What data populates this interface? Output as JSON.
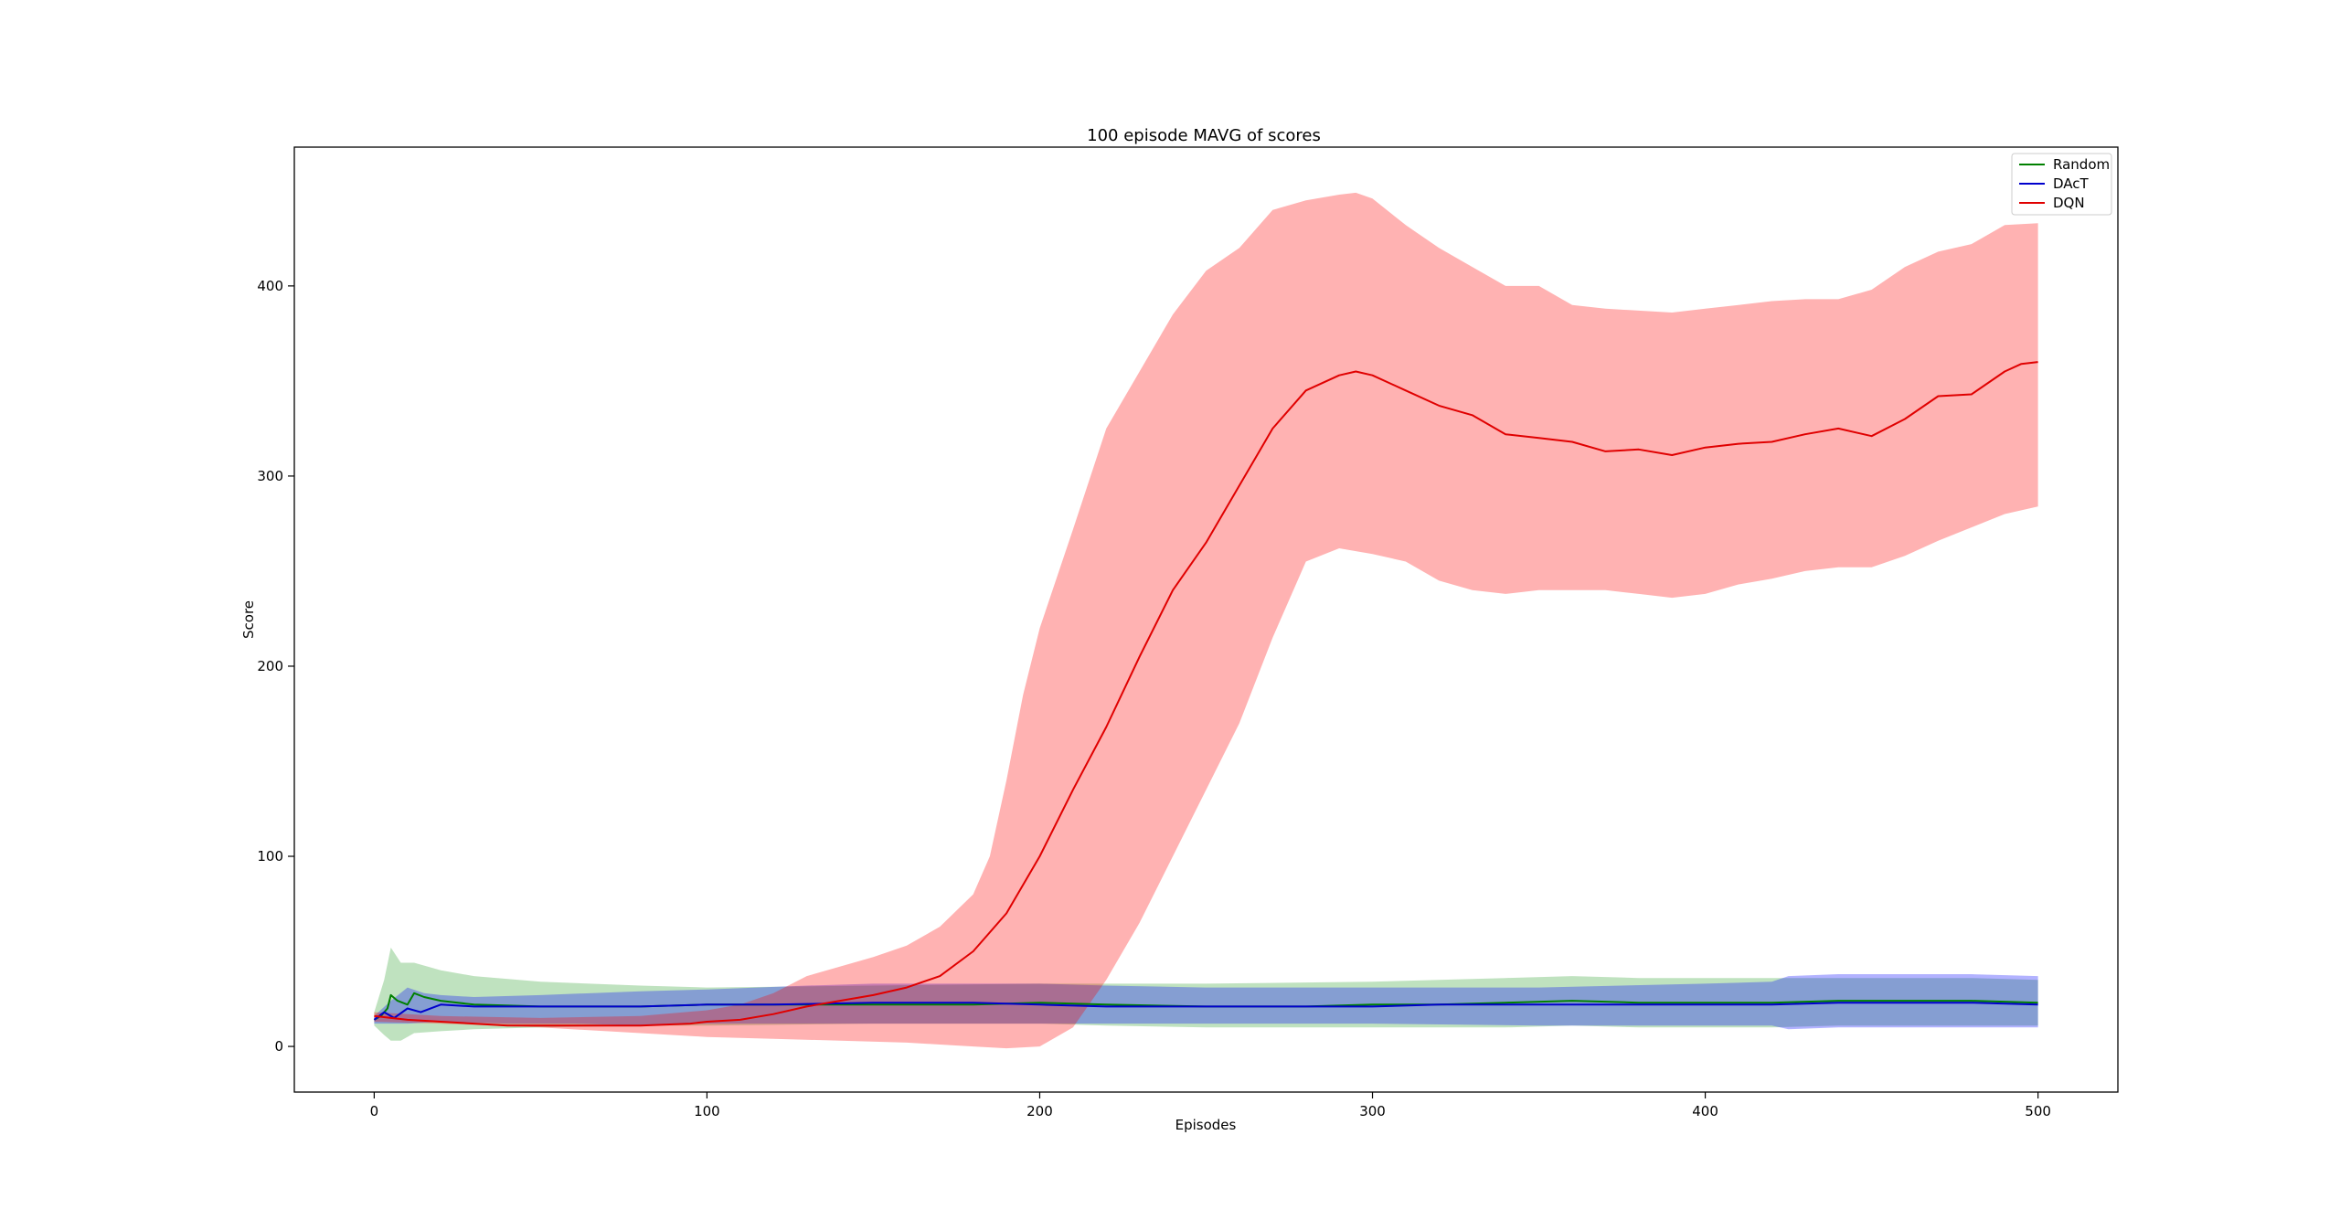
{
  "chart_data": {
    "type": "line",
    "title": "100 episode MAVG of scores",
    "xlabel": "Episodes",
    "ylabel": "Score",
    "xlim": [
      -24,
      524
    ],
    "ylim": [
      -24,
      473
    ],
    "xticks": [
      0,
      100,
      200,
      300,
      400,
      500
    ],
    "yticks": [
      0,
      100,
      200,
      300,
      400
    ],
    "legend_position": "top-right",
    "grid": false,
    "series": [
      {
        "name": "Random",
        "color": "#008000",
        "band_color": "#2ca02c",
        "mean": [
          [
            0,
            14
          ],
          [
            2,
            16
          ],
          [
            4,
            20
          ],
          [
            5,
            27
          ],
          [
            7,
            24
          ],
          [
            10,
            22
          ],
          [
            12,
            28
          ],
          [
            15,
            26
          ],
          [
            20,
            24
          ],
          [
            30,
            22
          ],
          [
            50,
            21
          ],
          [
            80,
            21
          ],
          [
            100,
            22
          ],
          [
            130,
            22
          ],
          [
            150,
            22
          ],
          [
            180,
            22
          ],
          [
            200,
            23
          ],
          [
            220,
            22
          ],
          [
            250,
            21
          ],
          [
            280,
            21
          ],
          [
            300,
            22
          ],
          [
            320,
            22
          ],
          [
            340,
            23
          ],
          [
            360,
            24
          ],
          [
            380,
            23
          ],
          [
            400,
            23
          ],
          [
            420,
            23
          ],
          [
            440,
            24
          ],
          [
            460,
            24
          ],
          [
            480,
            24
          ],
          [
            500,
            23
          ]
        ],
        "upper": [
          [
            0,
            18
          ],
          [
            3,
            35
          ],
          [
            5,
            52
          ],
          [
            8,
            44
          ],
          [
            12,
            44
          ],
          [
            20,
            40
          ],
          [
            30,
            37
          ],
          [
            50,
            34
          ],
          [
            80,
            32
          ],
          [
            100,
            31
          ],
          [
            150,
            32
          ],
          [
            200,
            33
          ],
          [
            220,
            33
          ],
          [
            250,
            33
          ],
          [
            300,
            34
          ],
          [
            320,
            35
          ],
          [
            340,
            36
          ],
          [
            360,
            37
          ],
          [
            380,
            36
          ],
          [
            400,
            36
          ],
          [
            420,
            36
          ],
          [
            440,
            36
          ],
          [
            460,
            36
          ],
          [
            480,
            36
          ],
          [
            500,
            35
          ]
        ],
        "lower": [
          [
            0,
            11
          ],
          [
            3,
            6
          ],
          [
            5,
            3
          ],
          [
            8,
            3
          ],
          [
            12,
            7
          ],
          [
            20,
            8
          ],
          [
            30,
            9
          ],
          [
            50,
            10
          ],
          [
            80,
            11
          ],
          [
            100,
            11
          ],
          [
            150,
            12
          ],
          [
            200,
            12
          ],
          [
            220,
            11
          ],
          [
            250,
            10
          ],
          [
            300,
            10
          ],
          [
            320,
            10
          ],
          [
            340,
            10
          ],
          [
            360,
            11
          ],
          [
            380,
            10
          ],
          [
            400,
            10
          ],
          [
            420,
            10
          ],
          [
            440,
            11
          ],
          [
            460,
            11
          ],
          [
            480,
            11
          ],
          [
            500,
            11
          ]
        ]
      },
      {
        "name": "DAcT",
        "color": "#0000cd",
        "band_color": "#0000ff",
        "mean": [
          [
            0,
            14
          ],
          [
            3,
            18
          ],
          [
            6,
            15
          ],
          [
            10,
            20
          ],
          [
            14,
            18
          ],
          [
            20,
            22
          ],
          [
            30,
            21
          ],
          [
            50,
            21
          ],
          [
            80,
            21
          ],
          [
            100,
            22
          ],
          [
            120,
            22
          ],
          [
            150,
            23
          ],
          [
            180,
            23
          ],
          [
            200,
            22
          ],
          [
            220,
            21
          ],
          [
            250,
            21
          ],
          [
            280,
            21
          ],
          [
            300,
            21
          ],
          [
            320,
            22
          ],
          [
            340,
            22
          ],
          [
            360,
            22
          ],
          [
            380,
            22
          ],
          [
            400,
            22
          ],
          [
            420,
            22
          ],
          [
            440,
            23
          ],
          [
            460,
            23
          ],
          [
            480,
            23
          ],
          [
            500,
            22
          ]
        ],
        "upper": [
          [
            0,
            16
          ],
          [
            5,
            24
          ],
          [
            10,
            31
          ],
          [
            15,
            28
          ],
          [
            20,
            27
          ],
          [
            30,
            26
          ],
          [
            50,
            27
          ],
          [
            80,
            29
          ],
          [
            100,
            30
          ],
          [
            130,
            32
          ],
          [
            150,
            33
          ],
          [
            180,
            33
          ],
          [
            200,
            33
          ],
          [
            220,
            32
          ],
          [
            250,
            31
          ],
          [
            300,
            31
          ],
          [
            350,
            31
          ],
          [
            400,
            33
          ],
          [
            420,
            34
          ],
          [
            425,
            37
          ],
          [
            440,
            38
          ],
          [
            460,
            38
          ],
          [
            480,
            38
          ],
          [
            500,
            37
          ]
        ],
        "lower": [
          [
            0,
            12
          ],
          [
            5,
            12
          ],
          [
            10,
            12
          ],
          [
            20,
            13
          ],
          [
            40,
            12
          ],
          [
            60,
            12
          ],
          [
            80,
            11
          ],
          [
            100,
            12
          ],
          [
            130,
            12
          ],
          [
            150,
            12
          ],
          [
            180,
            12
          ],
          [
            200,
            12
          ],
          [
            250,
            12
          ],
          [
            300,
            12
          ],
          [
            350,
            11
          ],
          [
            400,
            11
          ],
          [
            420,
            11
          ],
          [
            425,
            9
          ],
          [
            440,
            10
          ],
          [
            460,
            10
          ],
          [
            480,
            10
          ],
          [
            500,
            10
          ]
        ]
      },
      {
        "name": "DQN",
        "color": "#e00000",
        "band_color": "#ff0000",
        "mean": [
          [
            0,
            16
          ],
          [
            5,
            15
          ],
          [
            10,
            14
          ],
          [
            20,
            13
          ],
          [
            40,
            11
          ],
          [
            60,
            11
          ],
          [
            80,
            11
          ],
          [
            95,
            12
          ],
          [
            100,
            13
          ],
          [
            110,
            14
          ],
          [
            120,
            17
          ],
          [
            130,
            21
          ],
          [
            140,
            24
          ],
          [
            150,
            27
          ],
          [
            160,
            31
          ],
          [
            170,
            37
          ],
          [
            180,
            50
          ],
          [
            190,
            70
          ],
          [
            200,
            100
          ],
          [
            210,
            135
          ],
          [
            220,
            168
          ],
          [
            230,
            205
          ],
          [
            240,
            240
          ],
          [
            250,
            265
          ],
          [
            260,
            295
          ],
          [
            270,
            325
          ],
          [
            280,
            345
          ],
          [
            290,
            353
          ],
          [
            295,
            355
          ],
          [
            300,
            353
          ],
          [
            310,
            345
          ],
          [
            320,
            337
          ],
          [
            330,
            332
          ],
          [
            340,
            322
          ],
          [
            350,
            320
          ],
          [
            360,
            318
          ],
          [
            370,
            313
          ],
          [
            380,
            314
          ],
          [
            390,
            311
          ],
          [
            400,
            315
          ],
          [
            410,
            317
          ],
          [
            420,
            318
          ],
          [
            430,
            322
          ],
          [
            440,
            325
          ],
          [
            450,
            321
          ],
          [
            460,
            330
          ],
          [
            470,
            342
          ],
          [
            480,
            343
          ],
          [
            490,
            355
          ],
          [
            495,
            359
          ],
          [
            500,
            360
          ]
        ],
        "upper": [
          [
            0,
            18
          ],
          [
            20,
            16
          ],
          [
            50,
            15
          ],
          [
            80,
            16
          ],
          [
            100,
            19
          ],
          [
            110,
            22
          ],
          [
            120,
            28
          ],
          [
            130,
            37
          ],
          [
            150,
            47
          ],
          [
            160,
            53
          ],
          [
            170,
            63
          ],
          [
            180,
            80
          ],
          [
            185,
            100
          ],
          [
            190,
            140
          ],
          [
            195,
            185
          ],
          [
            200,
            220
          ],
          [
            210,
            272
          ],
          [
            220,
            325
          ],
          [
            230,
            355
          ],
          [
            240,
            385
          ],
          [
            250,
            408
          ],
          [
            260,
            420
          ],
          [
            270,
            440
          ],
          [
            280,
            445
          ],
          [
            290,
            448
          ],
          [
            295,
            449
          ],
          [
            300,
            446
          ],
          [
            310,
            432
          ],
          [
            320,
            420
          ],
          [
            330,
            410
          ],
          [
            340,
            400
          ],
          [
            350,
            400
          ],
          [
            360,
            390
          ],
          [
            370,
            388
          ],
          [
            380,
            387
          ],
          [
            390,
            386
          ],
          [
            400,
            388
          ],
          [
            410,
            390
          ],
          [
            420,
            392
          ],
          [
            430,
            393
          ],
          [
            440,
            393
          ],
          [
            450,
            398
          ],
          [
            460,
            410
          ],
          [
            470,
            418
          ],
          [
            480,
            422
          ],
          [
            490,
            432
          ],
          [
            500,
            433
          ]
        ],
        "lower": [
          [
            0,
            13
          ],
          [
            20,
            12
          ],
          [
            50,
            10
          ],
          [
            80,
            7
          ],
          [
            100,
            5
          ],
          [
            120,
            4
          ],
          [
            140,
            3
          ],
          [
            160,
            2
          ],
          [
            170,
            1
          ],
          [
            180,
            0
          ],
          [
            190,
            -1
          ],
          [
            200,
            0
          ],
          [
            210,
            10
          ],
          [
            220,
            35
          ],
          [
            230,
            65
          ],
          [
            240,
            100
          ],
          [
            250,
            135
          ],
          [
            260,
            170
          ],
          [
            270,
            215
          ],
          [
            280,
            255
          ],
          [
            290,
            262
          ],
          [
            300,
            259
          ],
          [
            310,
            255
          ],
          [
            320,
            245
          ],
          [
            330,
            240
          ],
          [
            340,
            238
          ],
          [
            350,
            240
          ],
          [
            360,
            240
          ],
          [
            370,
            240
          ],
          [
            380,
            238
          ],
          [
            390,
            236
          ],
          [
            400,
            238
          ],
          [
            410,
            243
          ],
          [
            420,
            246
          ],
          [
            430,
            250
          ],
          [
            440,
            252
          ],
          [
            450,
            252
          ],
          [
            460,
            258
          ],
          [
            470,
            266
          ],
          [
            480,
            273
          ],
          [
            490,
            280
          ],
          [
            500,
            284
          ]
        ]
      }
    ]
  }
}
